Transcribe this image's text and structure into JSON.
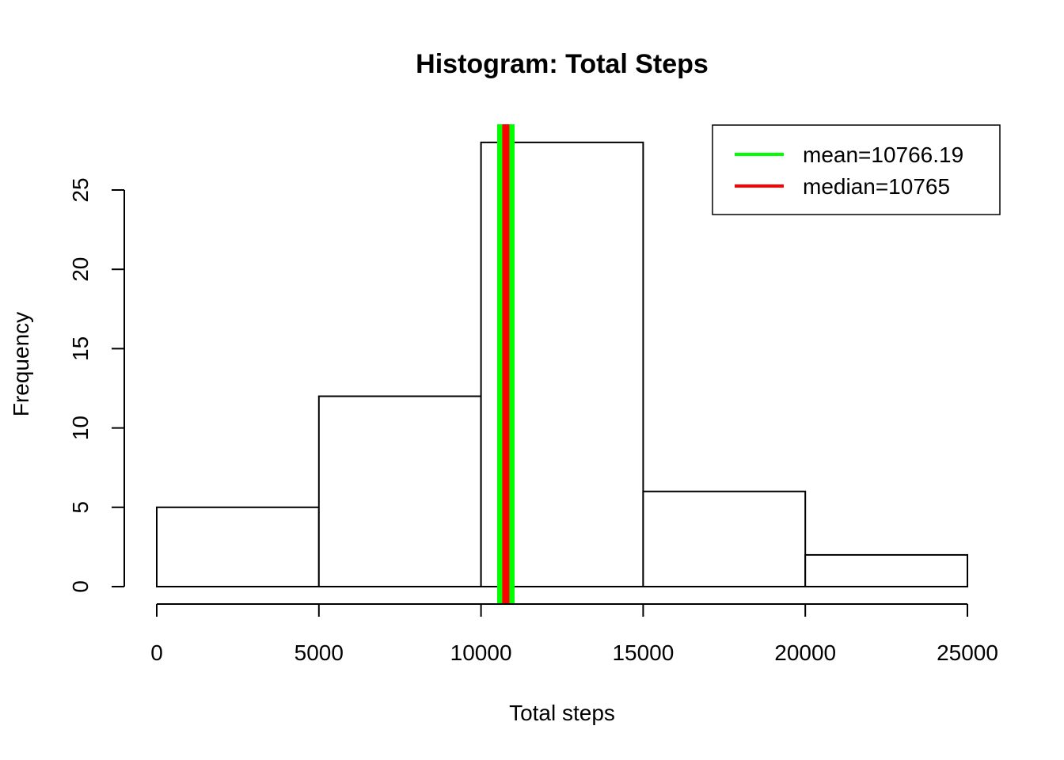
{
  "chart_data": {
    "type": "bar",
    "title": "Histogram: Total Steps",
    "xlabel": "Total steps",
    "ylabel": "Frequency",
    "bins": [
      {
        "from": 0,
        "to": 5000,
        "count": 5
      },
      {
        "from": 5000,
        "to": 10000,
        "count": 12
      },
      {
        "from": 10000,
        "to": 15000,
        "count": 28
      },
      {
        "from": 15000,
        "to": 20000,
        "count": 6
      },
      {
        "from": 20000,
        "to": 25000,
        "count": 2
      }
    ],
    "xlim": [
      0,
      25000
    ],
    "ylim": [
      0,
      28
    ],
    "xticks": [
      0,
      5000,
      10000,
      15000,
      20000,
      25000
    ],
    "xtick_labels": [
      "0",
      "5000",
      "10000",
      "15000",
      "20000",
      "25000"
    ],
    "yticks": [
      0,
      5,
      10,
      15,
      20,
      25
    ],
    "ytick_labels": [
      "0",
      "5",
      "10",
      "15",
      "20",
      "25"
    ],
    "vlines": [
      {
        "name": "mean",
        "value": 10766.19,
        "color": "#00ff00"
      },
      {
        "name": "median",
        "value": 10765,
        "color": "#ff0000"
      }
    ],
    "legend": {
      "position": "top-right",
      "entries": [
        {
          "label": "mean=10766.19",
          "color": "#00ff00"
        },
        {
          "label": "median=10765",
          "color": "#ff0000"
        }
      ]
    }
  }
}
